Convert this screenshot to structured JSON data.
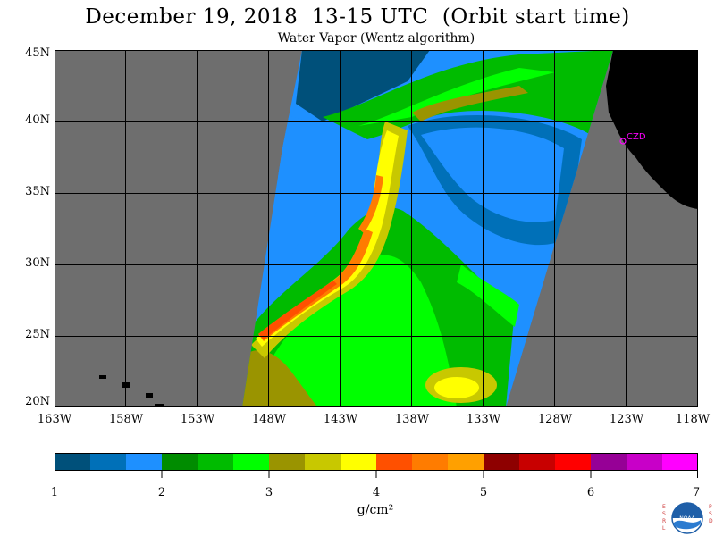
{
  "title": "December 19, 2018  13-15 UTC  (Orbit start time)",
  "subtitle": "Water Vapor (Wentz algorithm)",
  "map": {
    "lat_labels": [
      "45N",
      "40N",
      "35N",
      "30N",
      "25N",
      "20N"
    ],
    "lon_labels": [
      "163W",
      "158W",
      "153W",
      "148W",
      "143W",
      "138W",
      "133W",
      "128W",
      "123W",
      "118W"
    ],
    "station_label": "CZD",
    "land_color": "#000000",
    "nodata_color": "#6e6e6e",
    "grid_color": "#000000",
    "station_color": "#ff00ff"
  },
  "colorbar": {
    "ticks": [
      "1",
      "2",
      "3",
      "4",
      "5",
      "6",
      "7"
    ],
    "units": "g/cm²",
    "colors": [
      "#00507a",
      "#0070b8",
      "#1e90ff",
      "#008c00",
      "#00bb00",
      "#00ff00",
      "#9a9400",
      "#c8c800",
      "#ffff00",
      "#ff5000",
      "#ff7c00",
      "#ffa000",
      "#8e0000",
      "#c80000",
      "#ff0000",
      "#960096",
      "#c800c8",
      "#ff00ff"
    ]
  },
  "logo": {
    "left_letters": "ESRL",
    "right_letters": "PSD",
    "center_text": "NOAA"
  }
}
